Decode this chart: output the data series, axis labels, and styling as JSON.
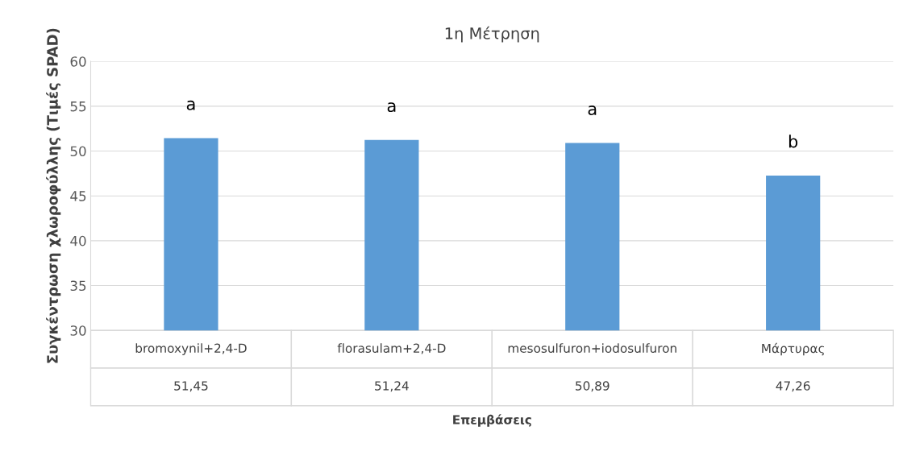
{
  "chart_data": {
    "type": "bar",
    "title": "1η Μέτρηση",
    "ylabel": "Συγκέντρωση χλωροφύλλης (Τιμές SPAD)",
    "xlabel": "Επεμβάσεις",
    "categories": [
      "bromoxynil+2,4-D",
      "florasulam+2,4-D",
      "mesosulfuron+iodosulfuron",
      "Μάρτυρας"
    ],
    "values": [
      51.45,
      51.24,
      50.89,
      47.26
    ],
    "color": "#5b9bd5",
    "value_labels": [
      "51,45",
      "51,24",
      "50,89",
      "47,26"
    ],
    "ylim": [
      30,
      60
    ],
    "yticks": [
      30,
      35,
      40,
      45,
      50,
      55,
      60
    ],
    "grid": "y",
    "annotations": [
      "a",
      "a",
      "a",
      "b"
    ]
  }
}
